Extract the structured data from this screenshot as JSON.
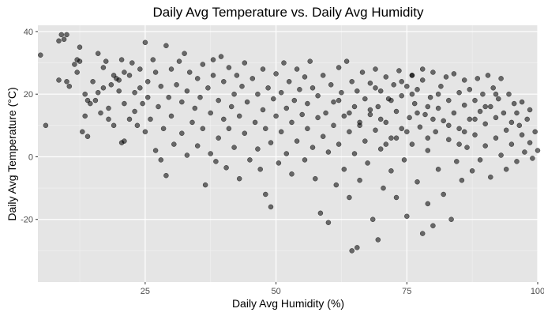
{
  "chart_data": {
    "type": "scatter",
    "title": "Daily Avg Temperature vs. Daily Avg Humidity",
    "xlabel": "Daily Avg Humidity (%)",
    "ylabel": "Daily Avg Temperature (°C)",
    "xlim": [
      4.5,
      100
    ],
    "ylim": [
      -40,
      42
    ],
    "x_ticks": [
      25,
      50,
      75,
      100
    ],
    "y_ticks": [
      -20,
      0,
      20,
      40
    ],
    "x_tick_labels": [
      "25",
      "50",
      "75",
      "100"
    ],
    "y_tick_labels": [
      "-20",
      "0",
      "20",
      "40"
    ],
    "grid": true,
    "background_color": "#e5e5e5",
    "point_color": "#000000",
    "point_opacity": 0.55,
    "points": [
      [
        5,
        32.5
      ],
      [
        6,
        10
      ],
      [
        8.5,
        24.5
      ],
      [
        8.5,
        37
      ],
      [
        9,
        39
      ],
      [
        9.5,
        37.5
      ],
      [
        10,
        39
      ],
      [
        10,
        24
      ],
      [
        10.5,
        22.5
      ],
      [
        11.5,
        29.5
      ],
      [
        12,
        27
      ],
      [
        12,
        31
      ],
      [
        12.5,
        30.5
      ],
      [
        12.5,
        35
      ],
      [
        13,
        8
      ],
      [
        13.5,
        13
      ],
      [
        13.5,
        20
      ],
      [
        14,
        18
      ],
      [
        14,
        6.5
      ],
      [
        14.5,
        17
      ],
      [
        15,
        24
      ],
      [
        15.5,
        18
      ],
      [
        16,
        33
      ],
      [
        16,
        20.5
      ],
      [
        16.5,
        14
      ],
      [
        17,
        28.5
      ],
      [
        17,
        22
      ],
      [
        17.5,
        30.5
      ],
      [
        18,
        15.5
      ],
      [
        18,
        12
      ],
      [
        18.5,
        23
      ],
      [
        19,
        10
      ],
      [
        19,
        26
      ],
      [
        19.5,
        25
      ],
      [
        20,
        24.5
      ],
      [
        20,
        21
      ],
      [
        20.5,
        4.5
      ],
      [
        20.5,
        31
      ],
      [
        21,
        27
      ],
      [
        21,
        17
      ],
      [
        21,
        5
      ],
      [
        22,
        12
      ],
      [
        22,
        26
      ],
      [
        22.5,
        30
      ],
      [
        23,
        20.5
      ],
      [
        23,
        14.5
      ],
      [
        23.5,
        10
      ],
      [
        24,
        22
      ],
      [
        24,
        28
      ],
      [
        24.5,
        17
      ],
      [
        25,
        36.5
      ],
      [
        25,
        8
      ],
      [
        25.5,
        24
      ],
      [
        25.5,
        19
      ],
      [
        26,
        12
      ],
      [
        26.5,
        31
      ],
      [
        27,
        27
      ],
      [
        27,
        2
      ],
      [
        27.5,
        16
      ],
      [
        28,
        -1
      ],
      [
        28,
        22.5
      ],
      [
        28.5,
        9
      ],
      [
        29,
        35.5
      ],
      [
        29,
        -6
      ],
      [
        29.5,
        19
      ],
      [
        30,
        28
      ],
      [
        30,
        13
      ],
      [
        30.5,
        4
      ],
      [
        31,
        23
      ],
      [
        31.5,
        30.5
      ],
      [
        32,
        7.5
      ],
      [
        32,
        17.5
      ],
      [
        32.5,
        33
      ],
      [
        33,
        21
      ],
      [
        33,
        0.5
      ],
      [
        33.5,
        27
      ],
      [
        34,
        11
      ],
      [
        34.5,
        15.5
      ],
      [
        35,
        25
      ],
      [
        35,
        3.5
      ],
      [
        35.5,
        19
      ],
      [
        36,
        29.5
      ],
      [
        36,
        9
      ],
      [
        36.5,
        -9
      ],
      [
        37,
        22
      ],
      [
        37.5,
        1
      ],
      [
        37.5,
        14
      ],
      [
        38,
        31
      ],
      [
        38,
        26
      ],
      [
        38.5,
        -1.5
      ],
      [
        39,
        18
      ],
      [
        39,
        6
      ],
      [
        39.5,
        32
      ],
      [
        40,
        24
      ],
      [
        40,
        12
      ],
      [
        40.5,
        -3.5
      ],
      [
        41,
        28.5
      ],
      [
        41,
        9
      ],
      [
        41.5,
        16
      ],
      [
        42,
        20
      ],
      [
        42,
        3
      ],
      [
        42.5,
        26
      ],
      [
        43,
        13
      ],
      [
        43,
        -7
      ],
      [
        43.5,
        22.5
      ],
      [
        44,
        7.5
      ],
      [
        44,
        30
      ],
      [
        44.5,
        17.5
      ],
      [
        45,
        -1
      ],
      [
        45.5,
        25
      ],
      [
        46,
        11
      ],
      [
        46.5,
        20
      ],
      [
        46.5,
        2.5
      ],
      [
        47,
        -4
      ],
      [
        47.5,
        15
      ],
      [
        47.5,
        28
      ],
      [
        48,
        -12
      ],
      [
        48,
        9
      ],
      [
        48.5,
        22
      ],
      [
        49,
        4.5
      ],
      [
        49,
        -16
      ],
      [
        49.5,
        18.5
      ],
      [
        50,
        13
      ],
      [
        50,
        26.5
      ],
      [
        50.5,
        -2
      ],
      [
        51,
        8
      ],
      [
        51,
        20.5
      ],
      [
        51.5,
        30
      ],
      [
        52,
        15.5
      ],
      [
        52,
        1
      ],
      [
        52.5,
        24
      ],
      [
        53,
        11
      ],
      [
        53,
        -5.5
      ],
      [
        53.5,
        18
      ],
      [
        54,
        5
      ],
      [
        54,
        28
      ],
      [
        54.5,
        21.5
      ],
      [
        55,
        13.5
      ],
      [
        55.5,
        -1
      ],
      [
        55.5,
        25.5
      ],
      [
        56,
        9
      ],
      [
        56,
        17
      ],
      [
        56.5,
        30.5
      ],
      [
        57,
        3
      ],
      [
        57,
        22
      ],
      [
        57.5,
        -7
      ],
      [
        58,
        12.5
      ],
      [
        58,
        19.5
      ],
      [
        58.5,
        -18
      ],
      [
        59,
        6.5
      ],
      [
        59,
        26
      ],
      [
        59.5,
        14
      ],
      [
        60,
        -21
      ],
      [
        60,
        1.5
      ],
      [
        60.5,
        23
      ],
      [
        61,
        10
      ],
      [
        61,
        17.5
      ],
      [
        61.5,
        -9
      ],
      [
        62,
        28.5
      ],
      [
        62,
        4
      ],
      [
        62.5,
        20.5
      ],
      [
        63,
        -4
      ],
      [
        63,
        13
      ],
      [
        63.5,
        30.5
      ],
      [
        64,
        8
      ],
      [
        64,
        -13
      ],
      [
        64.5,
        -30
      ],
      [
        64.5,
        24
      ],
      [
        65,
        16
      ],
      [
        65,
        1
      ],
      [
        65.5,
        -29
      ],
      [
        65.5,
        21
      ],
      [
        66,
        11
      ],
      [
        66,
        -7.5
      ],
      [
        66.5,
        27
      ],
      [
        67,
        5
      ],
      [
        67,
        18.5
      ],
      [
        67.5,
        -2
      ],
      [
        68,
        23.5
      ],
      [
        68,
        13.5
      ],
      [
        68.5,
        -20
      ],
      [
        69,
        8.5
      ],
      [
        69,
        28
      ],
      [
        69.5,
        -26.5
      ],
      [
        69.5,
        16
      ],
      [
        70,
        2.5
      ],
      [
        70,
        21
      ],
      [
        70.5,
        -10
      ],
      [
        71,
        25.5
      ],
      [
        71,
        11
      ],
      [
        71.5,
        18.5
      ],
      [
        72,
        -4.5
      ],
      [
        72,
        6
      ],
      [
        72.5,
        23
      ],
      [
        73,
        14.5
      ],
      [
        73,
        -13
      ],
      [
        73.5,
        27.5
      ],
      [
        74,
        9
      ],
      [
        74,
        19.5
      ],
      [
        74.5,
        -1
      ],
      [
        75,
        22.5
      ],
      [
        75,
        -19
      ],
      [
        75.5,
        12.5
      ],
      [
        76,
        26
      ],
      [
        76,
        4
      ],
      [
        76.5,
        17
      ],
      [
        77,
        -8
      ],
      [
        77,
        21.5
      ],
      [
        77.5,
        9.5
      ],
      [
        78,
        -24.5
      ],
      [
        78,
        24.5
      ],
      [
        78.5,
        13.5
      ],
      [
        79,
        -15
      ],
      [
        79,
        2
      ],
      [
        79.5,
        19
      ],
      [
        80,
        27
      ],
      [
        80,
        -22
      ],
      [
        80.5,
        8
      ],
      [
        81,
        15.5
      ],
      [
        81,
        -4
      ],
      [
        81.5,
        22.5
      ],
      [
        82,
        11.5
      ],
      [
        82,
        -12
      ],
      [
        82.5,
        25.5
      ],
      [
        83,
        5.5
      ],
      [
        83,
        18
      ],
      [
        83.5,
        -20
      ],
      [
        84,
        14
      ],
      [
        84,
        26.5
      ],
      [
        84.5,
        -1.5
      ],
      [
        85,
        20.5
      ],
      [
        85,
        9
      ],
      [
        85.5,
        -7.5
      ],
      [
        86,
        24.5
      ],
      [
        86,
        16.5
      ],
      [
        86.5,
        3
      ],
      [
        87,
        12
      ],
      [
        87,
        21.5
      ],
      [
        87.5,
        -4.5
      ],
      [
        88,
        18
      ],
      [
        88,
        7
      ],
      [
        88.5,
        25
      ],
      [
        89,
        14.5
      ],
      [
        89,
        -1
      ],
      [
        89.5,
        20
      ],
      [
        90,
        10.5
      ],
      [
        90,
        3.5
      ],
      [
        90.5,
        26
      ],
      [
        91,
        16
      ],
      [
        91,
        -6.5
      ],
      [
        91.5,
        22
      ],
      [
        92,
        12.5
      ],
      [
        92,
        6
      ],
      [
        92.5,
        18.5
      ],
      [
        93,
        0.5
      ],
      [
        93,
        25
      ],
      [
        93.5,
        14
      ],
      [
        94,
        8.5
      ],
      [
        94,
        -4
      ],
      [
        94.5,
        20
      ],
      [
        95,
        11
      ],
      [
        95,
        4
      ],
      [
        95.5,
        17
      ],
      [
        96,
        14
      ],
      [
        96,
        -1.5
      ],
      [
        96.5,
        10
      ],
      [
        97,
        7
      ],
      [
        97,
        17.5
      ],
      [
        97.5,
        1.5
      ],
      [
        98,
        12
      ],
      [
        98.5,
        4.5
      ],
      [
        98.5,
        15
      ],
      [
        99,
        -0.5
      ],
      [
        99.5,
        8
      ],
      [
        100,
        2
      ],
      [
        74,
        24
      ],
      [
        76,
        20
      ],
      [
        72,
        18
      ],
      [
        79,
        16
      ],
      [
        81,
        20
      ],
      [
        68,
        15
      ],
      [
        70,
        12
      ],
      [
        77,
        14
      ],
      [
        83,
        10
      ],
      [
        75,
        8
      ],
      [
        73,
        6
      ],
      [
        71,
        4
      ],
      [
        79,
        6
      ],
      [
        85,
        4
      ],
      [
        66,
        10
      ],
      [
        64,
        14
      ],
      [
        62,
        18
      ],
      [
        69,
        22
      ],
      [
        80,
        12
      ],
      [
        86,
        8
      ],
      [
        88,
        12
      ],
      [
        90,
        16
      ],
      [
        92,
        20
      ],
      [
        76,
        26
      ],
      [
        78,
        28
      ]
    ]
  }
}
